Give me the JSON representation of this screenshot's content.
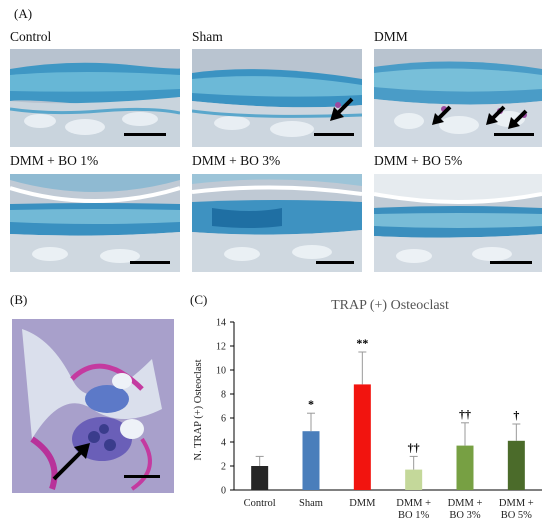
{
  "panel_a": {
    "letter": "(A)",
    "images": [
      {
        "label": "Control",
        "arrows": 0
      },
      {
        "label": "Sham",
        "arrows": 1
      },
      {
        "label": "DMM",
        "arrows": 3
      },
      {
        "label": "DMM + BO 1%",
        "arrows": 0
      },
      {
        "label": "DMM + BO 3%",
        "arrows": 0
      },
      {
        "label": "DMM + BO 5%",
        "arrows": 0
      }
    ]
  },
  "panel_b": {
    "letter": "(B)"
  },
  "panel_c": {
    "letter": "(C)"
  },
  "chart_data": {
    "type": "bar",
    "title": "TRAP (+) Osteoclast",
    "ylabel": "N. TRAP (+) Osteoclast",
    "xlabel": "",
    "ylim": [
      0,
      14
    ],
    "yticks": [
      0,
      2,
      4,
      6,
      8,
      10,
      12,
      14
    ],
    "grid": false,
    "categories": [
      "Control",
      "Sham",
      "DMM",
      "DMM + BO 1%",
      "DMM + BO 3%",
      "DMM + BO 5%"
    ],
    "category_lines": [
      [
        "Control"
      ],
      [
        "Sham"
      ],
      [
        "DMM"
      ],
      [
        "DMM +",
        "BO 1%"
      ],
      [
        "DMM +",
        "BO 3%"
      ],
      [
        "DMM +",
        "BO 5%"
      ]
    ],
    "values": [
      2.0,
      4.9,
      8.8,
      1.7,
      3.7,
      4.1
    ],
    "errors": [
      0.8,
      1.5,
      2.7,
      1.1,
      1.9,
      1.4
    ],
    "annotations": [
      "",
      "*",
      "**",
      "††",
      "††",
      "†"
    ],
    "colors": [
      "#262626",
      "#4a7ebb",
      "#f2140f",
      "#c4d89a",
      "#77a043",
      "#4b6b2a"
    ]
  }
}
